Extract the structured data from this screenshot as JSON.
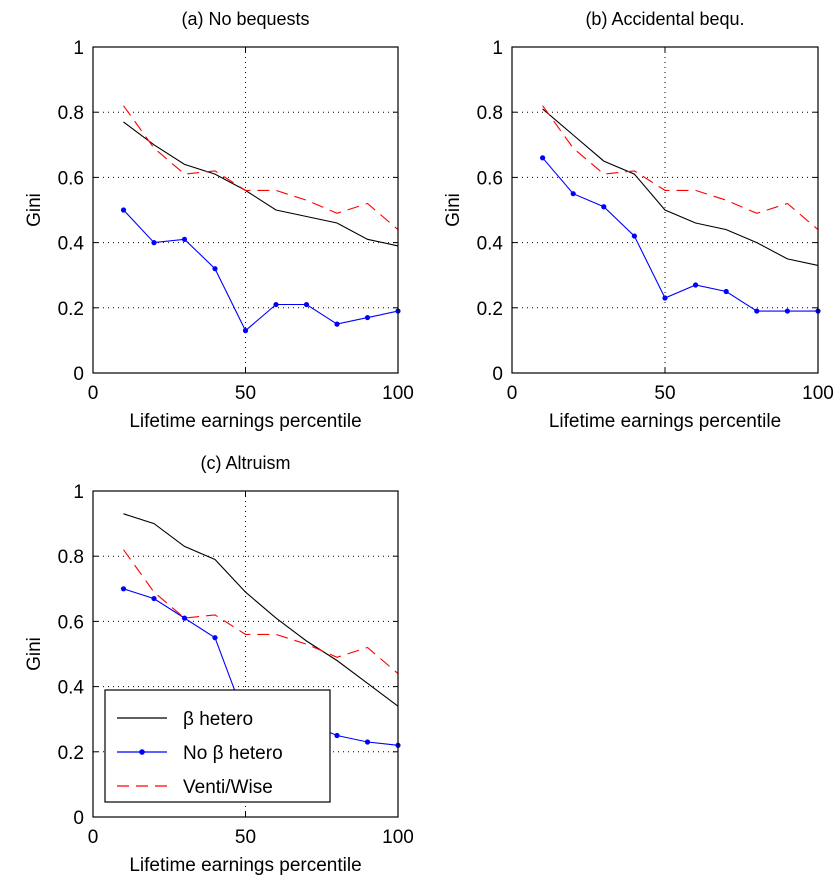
{
  "chart_data": [
    {
      "type": "line",
      "title": "(a) No bequests",
      "xlabel": "Lifetime earnings percentile",
      "ylabel": "Gini",
      "xlim": [
        0,
        100
      ],
      "ylim": [
        0,
        1
      ],
      "xticks": [
        "0",
        "50",
        "100"
      ],
      "yticks": [
        "0",
        "0.2",
        "0.4",
        "0.6",
        "0.8",
        "1"
      ],
      "grid": "dotted",
      "x": [
        10,
        20,
        30,
        40,
        50,
        60,
        70,
        80,
        90,
        100
      ],
      "series": [
        {
          "name": "β hetero",
          "color": "#000000",
          "style": "solid",
          "values": [
            0.77,
            0.7,
            0.64,
            0.61,
            0.56,
            0.5,
            0.48,
            0.46,
            0.41,
            0.39
          ]
        },
        {
          "name": "No β hetero",
          "color": "#0000ff",
          "style": "solid-dot",
          "values": [
            0.5,
            0.4,
            0.41,
            0.32,
            0.13,
            0.21,
            0.21,
            0.15,
            0.17,
            0.19
          ]
        },
        {
          "name": "Venti/Wise",
          "color": "#ff0000",
          "style": "dashed",
          "values": [
            0.82,
            0.69,
            0.61,
            0.62,
            0.56,
            0.56,
            0.53,
            0.49,
            0.52,
            0.44
          ]
        }
      ]
    },
    {
      "type": "line",
      "title": "(b) Accidental bequ.",
      "xlabel": "Lifetime earnings percentile",
      "ylabel": "Gini",
      "xlim": [
        0,
        100
      ],
      "ylim": [
        0,
        1
      ],
      "xticks": [
        "0",
        "50",
        "100"
      ],
      "yticks": [
        "0",
        "0.2",
        "0.4",
        "0.6",
        "0.8",
        "1"
      ],
      "grid": "dotted",
      "x": [
        10,
        20,
        30,
        40,
        50,
        60,
        70,
        80,
        90,
        100
      ],
      "series": [
        {
          "name": "β hetero",
          "color": "#000000",
          "style": "solid",
          "values": [
            0.81,
            0.73,
            0.65,
            0.61,
            0.5,
            0.46,
            0.44,
            0.4,
            0.35,
            0.33
          ]
        },
        {
          "name": "No β hetero",
          "color": "#0000ff",
          "style": "solid-dot",
          "values": [
            0.66,
            0.55,
            0.51,
            0.42,
            0.23,
            0.27,
            0.25,
            0.19,
            0.19,
            0.19
          ]
        },
        {
          "name": "Venti/Wise",
          "color": "#ff0000",
          "style": "dashed",
          "values": [
            0.82,
            0.69,
            0.61,
            0.62,
            0.56,
            0.56,
            0.53,
            0.49,
            0.52,
            0.44
          ]
        }
      ]
    },
    {
      "type": "line",
      "title": "(c) Altruism",
      "xlabel": "Lifetime earnings percentile",
      "ylabel": "Gini",
      "xlim": [
        0,
        100
      ],
      "ylim": [
        0,
        1
      ],
      "xticks": [
        "0",
        "50",
        "100"
      ],
      "yticks": [
        "0",
        "0.2",
        "0.4",
        "0.6",
        "0.8",
        "1"
      ],
      "grid": "dotted",
      "legend": "bottom-left",
      "x": [
        10,
        20,
        30,
        40,
        50,
        60,
        70,
        80,
        90,
        100
      ],
      "series": [
        {
          "name": "β hetero",
          "color": "#000000",
          "style": "solid",
          "values": [
            0.93,
            0.9,
            0.83,
            0.79,
            0.69,
            0.61,
            0.54,
            0.48,
            0.41,
            0.34
          ]
        },
        {
          "name": "No β hetero",
          "color": "#0000ff",
          "style": "solid-dot",
          "values": [
            0.7,
            0.67,
            0.61,
            0.55,
            0.3,
            0.3,
            0.29,
            0.25,
            0.23,
            0.22
          ]
        },
        {
          "name": "Venti/Wise",
          "color": "#ff0000",
          "style": "dashed",
          "values": [
            0.82,
            0.69,
            0.61,
            0.62,
            0.56,
            0.56,
            0.53,
            0.49,
            0.52,
            0.44
          ]
        }
      ]
    }
  ],
  "legend": {
    "items": [
      {
        "label": "β hetero",
        "color": "#000000",
        "style": "solid"
      },
      {
        "label": "No β hetero",
        "color": "#0000ff",
        "style": "solid-dot"
      },
      {
        "label": "Venti/Wise",
        "color": "#ff0000",
        "style": "dashed"
      }
    ]
  }
}
